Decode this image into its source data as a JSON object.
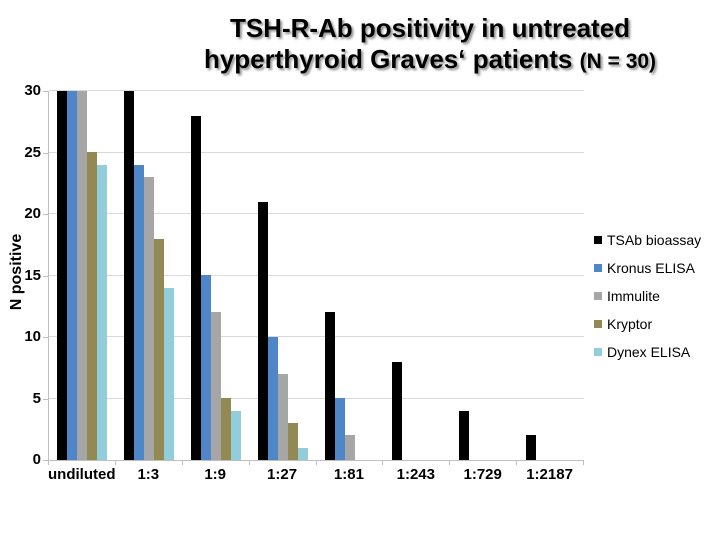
{
  "title": {
    "line1": "TSH-R-Ab positivity in untreated",
    "line2": "hyperthyroid Graves‘ patients ",
    "line2_suffix": "(N = 30)"
  },
  "chart_data": {
    "type": "bar",
    "title": "TSH-R-Ab positivity in untreated hyperthyroid Graves‘ patients (N = 30)",
    "categories": [
      "undiluted",
      "1:3",
      "1:9",
      "1:27",
      "1:81",
      "1:243",
      "1:729",
      "1:2187"
    ],
    "series": [
      {
        "name": "TSAb bioassay",
        "color": "#000000",
        "values": [
          30,
          30,
          28,
          21,
          12,
          8,
          4,
          2
        ]
      },
      {
        "name": "Kronus ELISA",
        "color": "#4E86C8",
        "values": [
          30,
          24,
          15,
          10,
          5,
          0,
          0,
          0
        ]
      },
      {
        "name": "Immulite",
        "color": "#A6A6A6",
        "values": [
          30,
          23,
          12,
          7,
          2,
          0,
          0,
          0
        ]
      },
      {
        "name": "Kryptor",
        "color": "#938953",
        "values": [
          25,
          18,
          5,
          3,
          0,
          0,
          0,
          0
        ]
      },
      {
        "name": "Dynex ELISA",
        "color": "#92CDDC",
        "values": [
          24,
          14,
          4,
          1,
          0,
          0,
          0,
          0
        ]
      }
    ],
    "xlabel": "",
    "ylabel": "N positive",
    "ylim": [
      0,
      30
    ],
    "yticks": [
      0,
      5,
      10,
      15,
      20,
      25,
      30
    ],
    "grid": true,
    "legend_position": "right",
    "grid_color": "#D9D9D9",
    "axis_color": "#BFBFBF",
    "background_color": "#FFFFFF"
  }
}
